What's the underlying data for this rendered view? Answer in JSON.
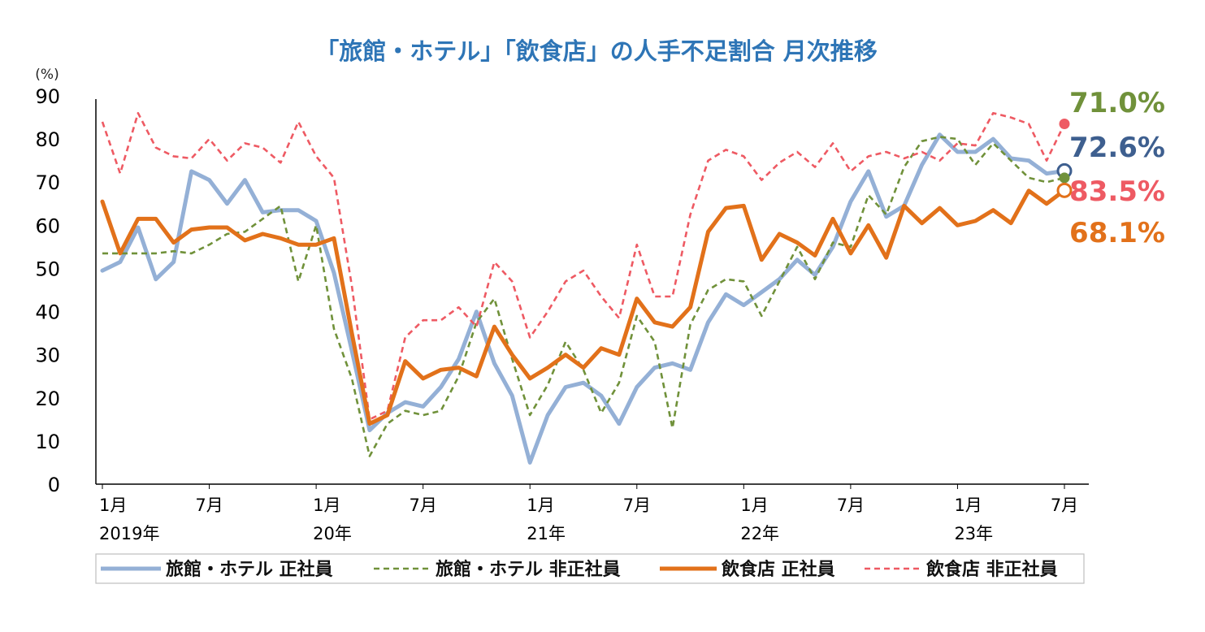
{
  "chart_data": {
    "type": "line",
    "title": "「旅館・ホテル」「飲食店」の人手不足割合 月次推移",
    "ylabel": "(%)",
    "ylim": [
      0,
      90
    ],
    "yticks": [
      0,
      10,
      20,
      30,
      40,
      50,
      60,
      70,
      80,
      90
    ],
    "grid": false,
    "legend_position": "bottom",
    "x_tick_labels": [
      {
        "index": 0,
        "line1": "1月",
        "line2": "2019年"
      },
      {
        "index": 6,
        "line1": "7月",
        "line2": ""
      },
      {
        "index": 12,
        "line1": "1月",
        "line2": "20年"
      },
      {
        "index": 18,
        "line1": "7月",
        "line2": ""
      },
      {
        "index": 24,
        "line1": "1月",
        "line2": "21年"
      },
      {
        "index": 30,
        "line1": "7月",
        "line2": ""
      },
      {
        "index": 36,
        "line1": "1月",
        "line2": "22年"
      },
      {
        "index": 42,
        "line1": "7月",
        "line2": ""
      },
      {
        "index": 48,
        "line1": "1月",
        "line2": "23年"
      },
      {
        "index": 54,
        "line1": "7月",
        "line2": ""
      }
    ],
    "series": [
      {
        "name": "旅館・ホテル 正社員",
        "color": "#94b0d6",
        "style": "solid-thick",
        "end_label": "72.6%",
        "end_label_color": "#3e5f8f",
        "values": [
          49.5,
          51.5,
          59.5,
          47.5,
          51.5,
          72.5,
          70.5,
          65,
          70.5,
          63,
          63.5,
          63.5,
          61,
          49,
          31,
          12.5,
          16.5,
          19,
          18,
          22.5,
          29,
          40,
          28,
          20.5,
          5,
          16,
          22.5,
          23.5,
          20.5,
          14,
          22.5,
          27,
          28,
          26.5,
          37.5,
          44,
          41.5,
          44.5,
          47.5,
          52,
          48.5,
          55,
          65.5,
          72.5,
          62,
          64.5,
          74,
          81,
          77,
          77,
          80,
          75.5,
          75,
          72,
          72.6
        ]
      },
      {
        "name": "旅館・ホテル 非正社員",
        "color": "#70913a",
        "style": "dashed",
        "end_label": "71.0%",
        "end_label_color": "#70913a",
        "values": [
          53.5,
          53.5,
          53.5,
          53.5,
          54,
          53.5,
          55.5,
          58,
          58.5,
          61.5,
          64.5,
          47,
          60,
          36,
          24.5,
          6.5,
          14,
          17,
          16,
          17,
          25,
          37.5,
          43,
          29,
          16,
          23,
          33,
          26.5,
          16.5,
          23.5,
          39,
          33,
          13,
          37,
          45,
          47.5,
          47,
          39,
          47,
          55,
          47.5,
          56,
          55,
          67,
          62.5,
          73.5,
          79.5,
          80.5,
          80,
          74,
          79,
          75,
          71,
          70,
          71.0
        ]
      },
      {
        "name": "飲食店 正社員",
        "color": "#e2711a",
        "style": "solid-thick",
        "end_label": "68.1%",
        "end_label_color": "#e2711a",
        "values": [
          65.5,
          53.5,
          61.5,
          61.5,
          56,
          59,
          59.5,
          59.5,
          56.5,
          58,
          57,
          55.5,
          55.5,
          57,
          35,
          14,
          16,
          28.5,
          24.5,
          26.5,
          27,
          25,
          36.5,
          30,
          24.5,
          27,
          30,
          27,
          31.5,
          30,
          43,
          37.5,
          36.5,
          41,
          58.5,
          64,
          64.5,
          52,
          58,
          56,
          53,
          61.5,
          53.5,
          60,
          52.5,
          64.5,
          60.5,
          64,
          60,
          61,
          63.5,
          60.5,
          68,
          65,
          68.1
        ]
      },
      {
        "name": "飲食店 非正社員",
        "color": "#ee5a63",
        "style": "dashed",
        "end_label": "83.5%",
        "end_label_color": "#ee5a63",
        "values": [
          84,
          72,
          86,
          78,
          76,
          75.5,
          80,
          75,
          79,
          78,
          74.5,
          84,
          76,
          71,
          46,
          15,
          17,
          34,
          38,
          38,
          41,
          36.5,
          51.5,
          47,
          34,
          40,
          47,
          49.5,
          43.5,
          38.5,
          55.5,
          43.5,
          43.5,
          62.5,
          75,
          77.5,
          76,
          70.5,
          74.5,
          77,
          73.5,
          79,
          72.5,
          76,
          77,
          75.5,
          77,
          75,
          79,
          78.5,
          86,
          85,
          83.5,
          75,
          83.5
        ]
      }
    ]
  }
}
